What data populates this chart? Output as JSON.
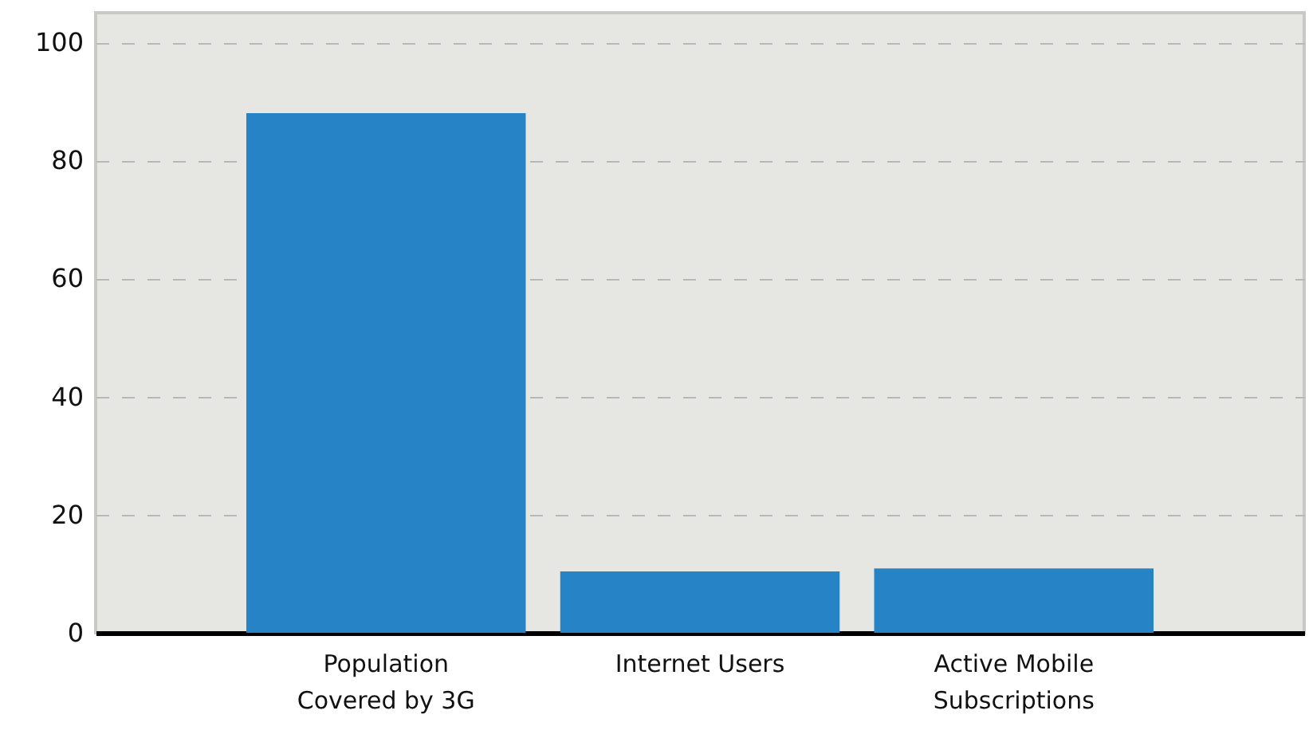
{
  "chart_data": {
    "type": "bar",
    "categories": [
      "Population\nCovered by 3G",
      "Internet Users",
      "Active Mobile\nSubscriptions"
    ],
    "values": [
      88,
      10.4,
      10.9
    ],
    "color": "#2683c6",
    "ylim": [
      0,
      105
    ],
    "yticks": [
      0,
      20,
      40,
      60,
      80,
      100
    ],
    "grid": "y"
  }
}
